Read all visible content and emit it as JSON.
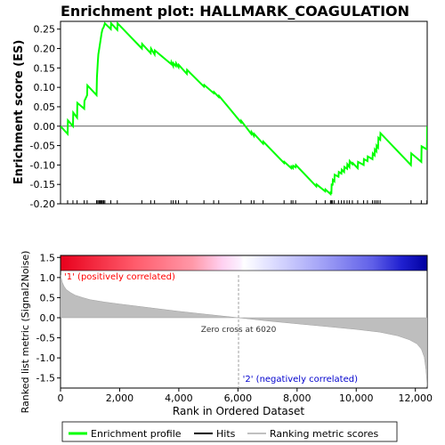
{
  "chart_data": {
    "type": "line",
    "title": "Enrichment plot: HALLMARK_COAGULATION",
    "top_panel": {
      "ylabel": "Enrichment score (ES)",
      "ylim": [
        -0.2,
        0.27
      ],
      "yticks": [
        "0.25",
        "0.20",
        "0.15",
        "0.10",
        "0.05",
        "0.00",
        "-0.05",
        "-0.10",
        "-0.15",
        "-0.20"
      ],
      "ytick_values": [
        0.25,
        0.2,
        0.15,
        0.1,
        0.05,
        0.0,
        -0.05,
        -0.1,
        -0.15,
        -0.2
      ],
      "es_profile": {
        "x": [
          0,
          240,
          250,
          420,
          430,
          560,
          570,
          800,
          810,
          900,
          910,
          1220,
          1230,
          1260,
          1280,
          1300,
          1330,
          1360,
          1390,
          1420,
          1460,
          1500,
          1700,
          1710,
          1920,
          1930,
          2750,
          2760,
          3050,
          3060,
          3180,
          3190,
          3740,
          3750,
          3810,
          3820,
          3900,
          3910,
          3990,
          4000,
          4270,
          4280,
          4850,
          4860,
          5180,
          5190,
          5350,
          5360,
          6100,
          6110,
          6450,
          6460,
          6540,
          6550,
          6850,
          6860,
          7560,
          7570,
          7800,
          7810,
          7860,
          7870,
          7950,
          7960,
          8650,
          8660,
          8950,
          8960,
          9130,
          9140,
          9160,
          9170,
          9200,
          9210,
          9260,
          9270,
          9400,
          9410,
          9500,
          9510,
          9590,
          9600,
          9690,
          9700,
          9770,
          9780,
          9870,
          9880,
          10050,
          10060,
          10250,
          10260,
          10380,
          10390,
          10550,
          10560,
          10620,
          10630,
          10680,
          10690,
          10740,
          10750,
          10810,
          10820,
          11850,
          11860,
          12200,
          12210,
          12390,
          12400
        ],
        "y": [
          0.0,
          -0.02,
          0.015,
          0.0,
          0.035,
          0.022,
          0.06,
          0.045,
          0.065,
          0.08,
          0.105,
          0.08,
          0.125,
          0.165,
          0.185,
          0.195,
          0.21,
          0.225,
          0.24,
          0.25,
          0.255,
          0.265,
          0.25,
          0.265,
          0.248,
          0.265,
          0.2,
          0.212,
          0.188,
          0.2,
          0.185,
          0.195,
          0.16,
          0.165,
          0.155,
          0.162,
          0.155,
          0.162,
          0.152,
          0.158,
          0.135,
          0.145,
          0.102,
          0.106,
          0.085,
          0.088,
          0.075,
          0.078,
          0.01,
          0.014,
          -0.02,
          -0.015,
          -0.025,
          -0.02,
          -0.045,
          -0.04,
          -0.095,
          -0.092,
          -0.108,
          -0.104,
          -0.108,
          -0.102,
          -0.106,
          -0.1,
          -0.155,
          -0.15,
          -0.168,
          -0.163,
          -0.175,
          -0.168,
          -0.175,
          -0.148,
          -0.153,
          -0.138,
          -0.142,
          -0.125,
          -0.13,
          -0.118,
          -0.122,
          -0.112,
          -0.118,
          -0.105,
          -0.11,
          -0.098,
          -0.105,
          -0.09,
          -0.098,
          -0.095,
          -0.108,
          -0.092,
          -0.1,
          -0.085,
          -0.09,
          -0.078,
          -0.085,
          -0.07,
          -0.075,
          -0.06,
          -0.065,
          -0.05,
          -0.055,
          -0.03,
          -0.035,
          -0.018,
          -0.1,
          -0.07,
          -0.092,
          -0.052,
          -0.06,
          0.0
        ]
      },
      "hits": [
        240,
        420,
        560,
        800,
        900,
        1220,
        1260,
        1300,
        1330,
        1360,
        1390,
        1420,
        1460,
        1500,
        1700,
        1920,
        2750,
        3050,
        3180,
        3740,
        3810,
        3900,
        3990,
        4270,
        4850,
        5180,
        5350,
        6100,
        6450,
        6540,
        6850,
        7560,
        7800,
        7860,
        7950,
        8650,
        8950,
        9130,
        9160,
        9200,
        9260,
        9400,
        9500,
        9590,
        9690,
        9770,
        9870,
        10050,
        10250,
        10380,
        10550,
        10620,
        10680,
        10740,
        10810,
        11850,
        12200,
        12390
      ]
    },
    "bottom_panel": {
      "ylabel": "Ranked list metric (Signal2Noise)",
      "xlabel": "Rank in Ordered Dataset",
      "ylim": [
        -1.75,
        1.55
      ],
      "yticks": [
        "1.5",
        "1.0",
        "0.5",
        "0.0",
        "-0.5",
        "-1.0",
        "-1.5"
      ],
      "ytick_values": [
        1.5,
        1.0,
        0.5,
        0.0,
        -0.5,
        -1.0,
        -1.5
      ],
      "xlim": [
        0,
        12400
      ],
      "xticks": [
        "0",
        "2,000",
        "4,000",
        "6,000",
        "8,000",
        "10,000",
        "12,000"
      ],
      "xtick_values": [
        0,
        2000,
        4000,
        6000,
        8000,
        10000,
        12000
      ],
      "metric_curve": {
        "x": [
          0,
          20,
          60,
          120,
          200,
          350,
          500,
          750,
          1000,
          1500,
          2000,
          3000,
          4000,
          5000,
          6020,
          7000,
          8000,
          9000,
          10000,
          10800,
          11400,
          11800,
          12050,
          12200,
          12300,
          12360,
          12400
        ],
        "y": [
          1.5,
          1.0,
          0.88,
          0.78,
          0.7,
          0.62,
          0.56,
          0.5,
          0.45,
          0.39,
          0.34,
          0.25,
          0.16,
          0.08,
          0.0,
          -0.08,
          -0.15,
          -0.22,
          -0.29,
          -0.36,
          -0.45,
          -0.55,
          -0.65,
          -0.78,
          -0.98,
          -1.3,
          -1.72
        ]
      },
      "zero_cross_label": "Zero cross at 6020",
      "zero_cross": 6020,
      "pos_label": "'1' (positively correlated)",
      "neg_label": "'2' (negatively correlated)"
    },
    "legend": {
      "placement": "bottom",
      "entries": [
        {
          "label": "Enrichment profile",
          "color": "#00ff00"
        },
        {
          "label": "Hits",
          "color": "#000000"
        },
        {
          "label": "Ranking metric scores",
          "color": "#c0c0c0"
        }
      ]
    },
    "colors": {
      "profile": "#00ff00",
      "hits": "#000000",
      "metric_fill": "#bebebe",
      "pos_label": "#ff0000",
      "neg_label": "#0000cd"
    }
  }
}
